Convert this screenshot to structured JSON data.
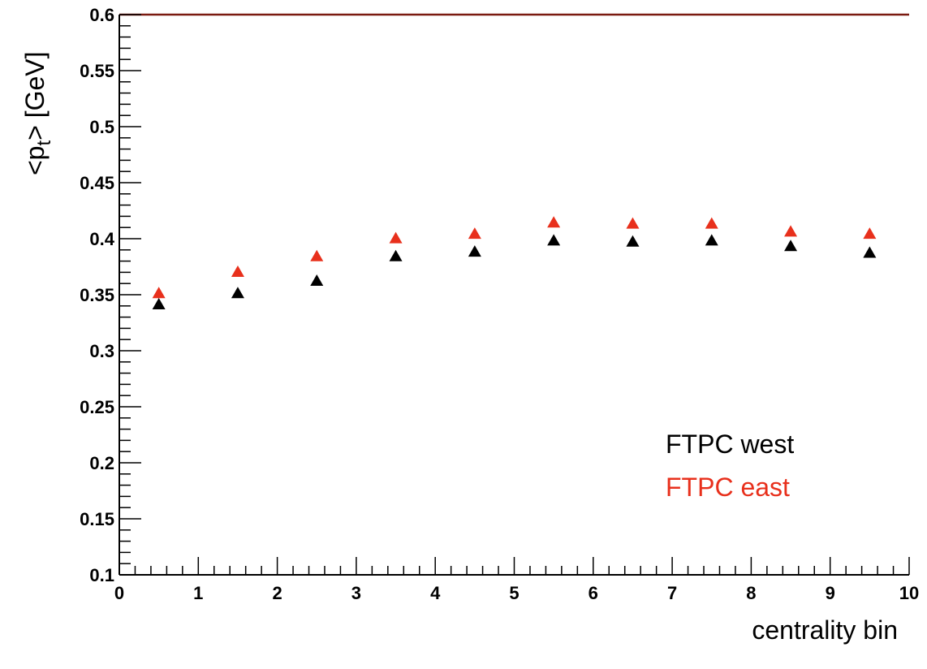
{
  "chart_data": {
    "type": "scatter",
    "title": "",
    "xlabel": "centrality bin",
    "ylabel_main": "<p",
    "ylabel_sub": "t",
    "ylabel_rest": "> [GeV]",
    "xlim": [
      0,
      10
    ],
    "ylim": [
      0.1,
      0.6
    ],
    "x_ticks": [
      "0",
      "1",
      "2",
      "3",
      "4",
      "5",
      "6",
      "7",
      "8",
      "9",
      "10"
    ],
    "y_ticks": [
      "0.1",
      "0.15",
      "0.2",
      "0.25",
      "0.3",
      "0.35",
      "0.4",
      "0.45",
      "0.5",
      "0.55",
      "0.6"
    ],
    "grid": false,
    "legend_position": "bottom-right",
    "marker": "triangle-up",
    "series": [
      {
        "name": "FTPC west",
        "color": "#000000",
        "x": [
          0.5,
          1.5,
          2.5,
          3.5,
          4.5,
          5.5,
          6.5,
          7.5,
          8.5,
          9.5
        ],
        "y": [
          0.342,
          0.352,
          0.363,
          0.385,
          0.389,
          0.399,
          0.398,
          0.399,
          0.394,
          0.388
        ]
      },
      {
        "name": "FTPC east",
        "color": "#e8301c",
        "x": [
          0.5,
          1.5,
          2.5,
          3.5,
          4.5,
          5.5,
          6.5,
          7.5,
          8.5,
          9.5
        ],
        "y": [
          0.352,
          0.371,
          0.385,
          0.401,
          0.405,
          0.415,
          0.414,
          0.414,
          0.407,
          0.405
        ]
      }
    ]
  }
}
